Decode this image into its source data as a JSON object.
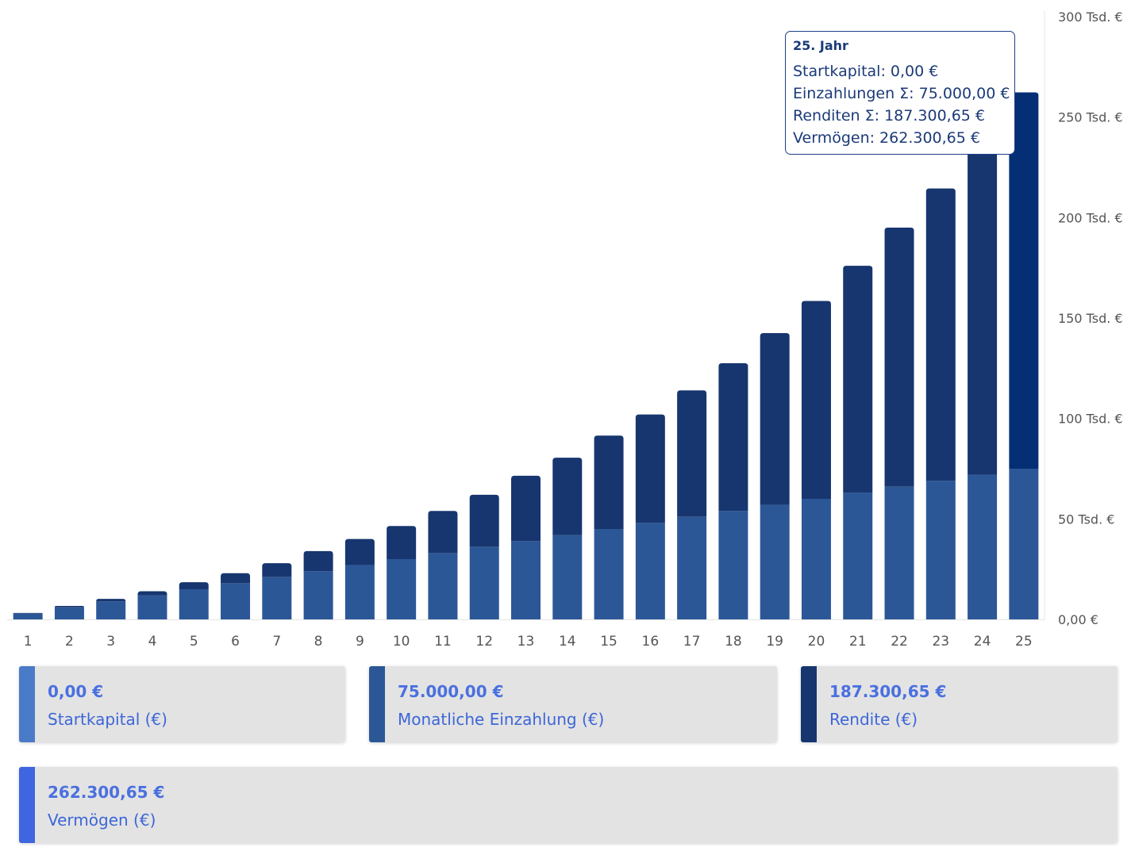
{
  "chart_data": {
    "type": "bar",
    "stacked": true,
    "categories": [
      "1",
      "2",
      "3",
      "4",
      "5",
      "6",
      "7",
      "8",
      "9",
      "10",
      "11",
      "12",
      "13",
      "14",
      "15",
      "16",
      "17",
      "18",
      "19",
      "20",
      "21",
      "22",
      "23",
      "24",
      "25"
    ],
    "series": [
      {
        "name": "Monatliche Einzahlung (€)",
        "color": "#2c5797",
        "values": [
          3000,
          6000,
          9000,
          12000,
          15000,
          18000,
          21000,
          24000,
          27000,
          30000,
          33000,
          36000,
          39000,
          42000,
          45000,
          48000,
          51000,
          54000,
          57000,
          60000,
          63000,
          66000,
          69000,
          72000,
          75000
        ]
      },
      {
        "name": "Rendite (€)",
        "color": "#17366f",
        "values": [
          200,
          700,
          1200,
          2000,
          3500,
          5000,
          7000,
          10000,
          13000,
          16500,
          21000,
          26000,
          32500,
          38500,
          46500,
          54000,
          63000,
          73500,
          85500,
          98500,
          113000,
          129000,
          145500,
          165000,
          187300.65
        ]
      }
    ],
    "highlight_index": 24,
    "highlight_color": "#042f75",
    "y_ticks": [
      "0,00 €",
      "50 Tsd. €",
      "100 Tsd. €",
      "150 Tsd. €",
      "200 Tsd. €",
      "250 Tsd. €",
      "300 Tsd. €"
    ],
    "y_tick_values": [
      0,
      50000,
      100000,
      150000,
      200000,
      250000,
      300000
    ],
    "ylim": [
      0,
      300000
    ],
    "y_axis_position": "right",
    "grid": false,
    "title": "",
    "xlabel": "",
    "ylabel": ""
  },
  "tooltip": {
    "title": "25. Jahr",
    "rows": [
      "Startkapital: 0,00 €",
      "Einzahlungen Σ: 75.000,00 €",
      "Renditen Σ: 187.300,65 €",
      "Vermögen: 262.300,65 €"
    ]
  },
  "summary": [
    {
      "value": "0,00 €",
      "label": "Startkapital (€)",
      "color": "#4a7bc8"
    },
    {
      "value": "75.000,00 €",
      "label": "Monatliche Einzahlung (€)",
      "color": "#2c5797"
    },
    {
      "value": "187.300,65 €",
      "label": "Rendite (€)",
      "color": "#17366f"
    },
    {
      "value": "262.300,65 €",
      "label": "Vermögen (€)",
      "color": "#3d66e0"
    }
  ]
}
